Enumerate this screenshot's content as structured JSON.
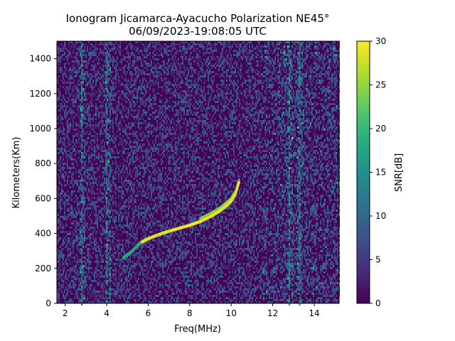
{
  "chart_data": {
    "type": "heatmap",
    "title": "Ionogram Jicamarca-Ayacucho Polarization NE45°",
    "subtitle": "06/09/2023-19:08:05 UTC",
    "xlabel": "Freq(MHz)",
    "ylabel": "Kilometers(Km)",
    "colorbar_label": "SNR[dB]",
    "colormap": "viridis",
    "xlim": [
      1.6,
      15.2
    ],
    "ylim": [
      0,
      1500
    ],
    "clim": [
      0,
      30
    ],
    "x_ticks": [
      "2",
      "4",
      "6",
      "8",
      "10",
      "12",
      "14"
    ],
    "y_ticks": [
      "0",
      "200",
      "400",
      "600",
      "800",
      "1000",
      "1200",
      "1400"
    ],
    "colorbar_ticks": [
      "0",
      "5",
      "10",
      "15",
      "20",
      "25",
      "30"
    ],
    "grid": false,
    "trace": {
      "freq_mhz": [
        4.8,
        5.2,
        5.6,
        6.0,
        6.5,
        7.0,
        7.5,
        8.0,
        8.5,
        9.0,
        9.4,
        9.7,
        10.0,
        10.2,
        10.4
      ],
      "height_km": [
        260,
        295,
        345,
        370,
        393,
        413,
        430,
        447,
        468,
        497,
        525,
        552,
        585,
        625,
        700
      ]
    },
    "vertical_interference_mhz": [
      2.8,
      4.0,
      12.8,
      13.3
    ]
  }
}
